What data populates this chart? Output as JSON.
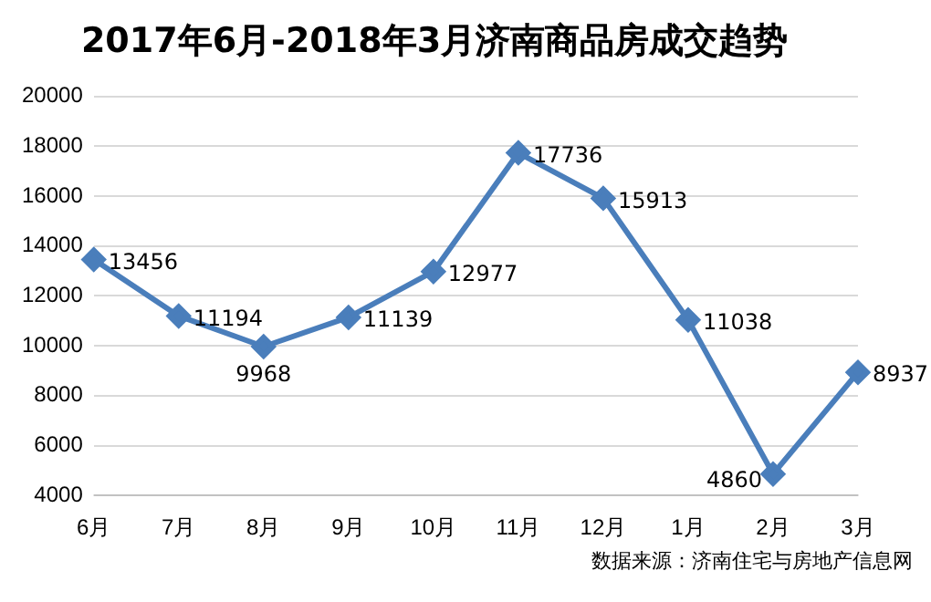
{
  "chart_data": {
    "type": "line",
    "title": "2017年6月-2018年3月济南商品房成交趋势",
    "categories": [
      "6月",
      "7月",
      "8月",
      "9月",
      "10月",
      "11月",
      "12月",
      "1月",
      "2月",
      "3月"
    ],
    "series": [
      {
        "color": "#4a7ebb",
        "values": [
          13456,
          11194,
          9968,
          11139,
          12977,
          17736,
          15913,
          11038,
          4860,
          8937
        ]
      }
    ],
    "ylim": [
      4000,
      20000
    ],
    "yticks": [
      4000,
      6000,
      8000,
      10000,
      12000,
      14000,
      16000,
      18000,
      20000
    ],
    "grid": "y",
    "marker": "diamond",
    "line_style": "solid",
    "data_labels": true,
    "legend": false,
    "annotations": [
      "数据来源：济南住宅与房地产信息网"
    ]
  }
}
